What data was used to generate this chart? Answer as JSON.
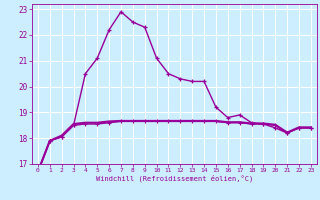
{
  "xlabel": "Windchill (Refroidissement éolien,°C)",
  "background_color": "#cceeff",
  "grid_color": "#ffffff",
  "line_color": "#990099",
  "xlim": [
    -0.5,
    23.5
  ],
  "ylim": [
    17,
    23.2
  ],
  "yticks": [
    17,
    18,
    19,
    20,
    21,
    22,
    23
  ],
  "xticks": [
    0,
    1,
    2,
    3,
    4,
    5,
    6,
    7,
    8,
    9,
    10,
    11,
    12,
    13,
    14,
    15,
    16,
    17,
    18,
    19,
    20,
    21,
    22,
    23
  ],
  "hours": [
    0,
    1,
    2,
    3,
    4,
    5,
    6,
    7,
    8,
    9,
    10,
    11,
    12,
    13,
    14,
    15,
    16,
    17,
    18,
    19,
    20,
    21,
    22,
    23
  ],
  "temp": [
    16.7,
    17.9,
    18.05,
    18.5,
    20.5,
    21.1,
    22.2,
    22.9,
    22.5,
    22.3,
    21.1,
    20.5,
    20.3,
    20.2,
    20.2,
    19.2,
    18.8,
    18.9,
    18.6,
    18.55,
    18.4,
    18.2,
    18.4,
    18.4
  ],
  "wc1": [
    16.7,
    17.9,
    18.05,
    18.5,
    18.55,
    18.55,
    18.6,
    18.65,
    18.65,
    18.65,
    18.65,
    18.65,
    18.65,
    18.65,
    18.65,
    18.65,
    18.6,
    18.6,
    18.55,
    18.55,
    18.5,
    18.2,
    18.4,
    18.4
  ],
  "wc2": [
    16.7,
    17.9,
    18.1,
    18.55,
    18.6,
    18.6,
    18.65,
    18.67,
    18.67,
    18.67,
    18.67,
    18.67,
    18.67,
    18.67,
    18.67,
    18.67,
    18.62,
    18.62,
    18.57,
    18.57,
    18.52,
    18.22,
    18.42,
    18.42
  ]
}
